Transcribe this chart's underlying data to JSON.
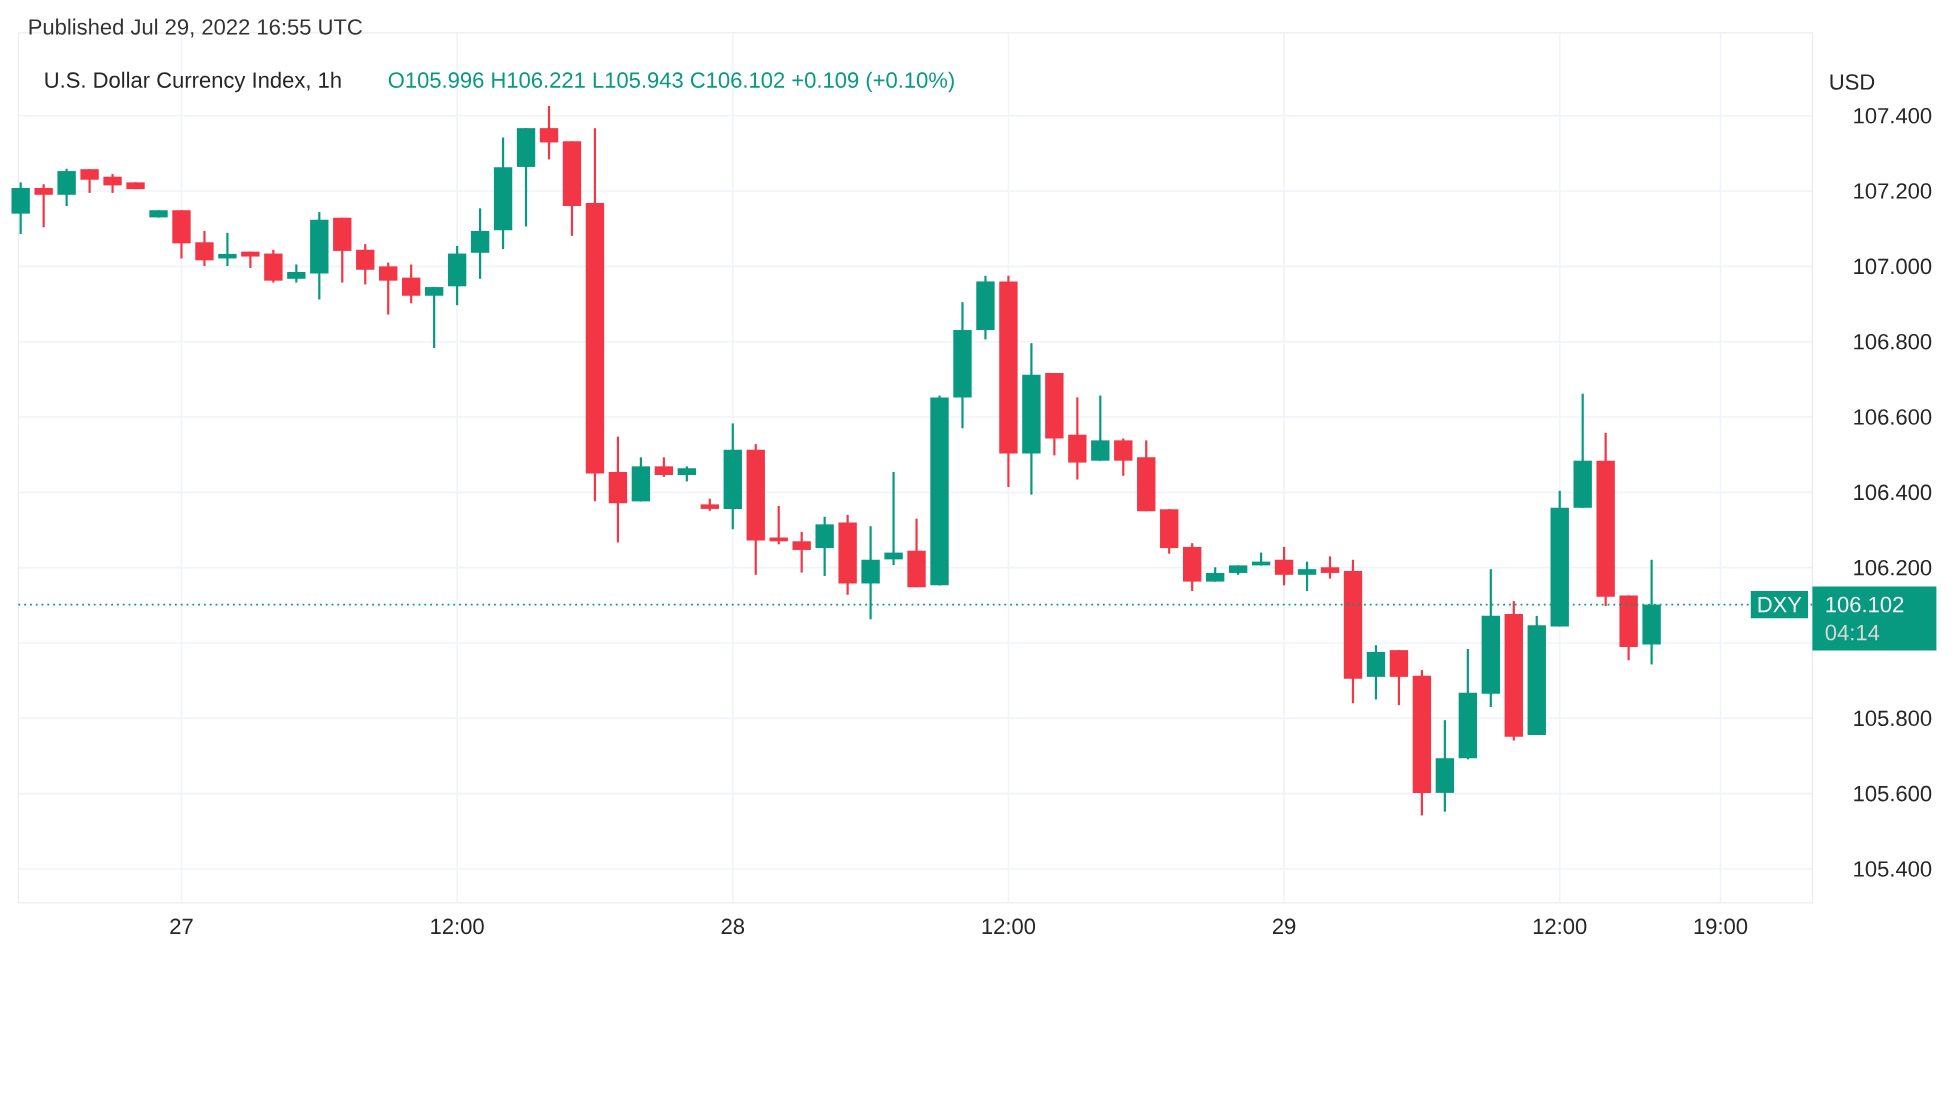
{
  "chart_data": {
    "type": "candlestick",
    "title": "U.S. Dollar Currency Index, 1h",
    "subtitle": "O105.996 H106.221 L105.943 C106.102 +0.109 (+0.10%)",
    "ylabel": "USD",
    "annotations": [
      "Published Jul 29, 2022 16:55 UTC",
      "106.102",
      "04:14"
    ],
    "x": [
      "2022-07-26T17:00",
      "2022-07-26T18:00",
      "2022-07-26T19:00",
      "2022-07-26T20:00",
      "2022-07-26T21:00",
      "2022-07-26T22:00",
      "2022-07-26T23:00",
      "2022-07-27T00:00",
      "2022-07-27T01:00",
      "2022-07-27T02:00",
      "2022-07-27T03:00",
      "2022-07-27T04:00",
      "2022-07-27T05:00",
      "2022-07-27T06:00",
      "2022-07-27T07:00",
      "2022-07-27T08:00",
      "2022-07-27T09:00",
      "2022-07-27T10:00",
      "2022-07-27T11:00",
      "2022-07-27T12:00",
      "2022-07-27T13:00",
      "2022-07-27T14:00",
      "2022-07-27T15:00",
      "2022-07-27T16:00",
      "2022-07-27T17:00",
      "2022-07-27T18:00",
      "2022-07-27T19:00",
      "2022-07-27T20:00",
      "2022-07-27T21:00",
      "2022-07-27T22:00",
      "2022-07-27T23:00",
      "2022-07-28T00:00",
      "2022-07-28T01:00",
      "2022-07-28T02:00",
      "2022-07-28T03:00",
      "2022-07-28T04:00",
      "2022-07-28T05:00",
      "2022-07-28T06:00",
      "2022-07-28T07:00",
      "2022-07-28T08:00",
      "2022-07-28T09:00",
      "2022-07-28T10:00",
      "2022-07-28T11:00",
      "2022-07-28T12:00",
      "2022-07-28T13:00",
      "2022-07-28T14:00",
      "2022-07-28T15:00",
      "2022-07-28T16:00",
      "2022-07-28T17:00",
      "2022-07-28T18:00",
      "2022-07-28T19:00",
      "2022-07-28T20:00",
      "2022-07-28T21:00",
      "2022-07-28T22:00",
      "2022-07-28T23:00",
      "2022-07-29T00:00",
      "2022-07-29T01:00",
      "2022-07-29T02:00",
      "2022-07-29T03:00",
      "2022-07-29T04:00",
      "2022-07-29T05:00",
      "2022-07-29T06:00",
      "2022-07-29T07:00",
      "2022-07-29T08:00",
      "2022-07-29T09:00",
      "2022-07-29T10:00",
      "2022-07-29T11:00",
      "2022-07-29T12:00",
      "2022-07-29T13:00",
      "2022-07-29T14:00",
      "2022-07-29T15:00",
      "2022-07-29T16:00"
    ],
    "ohlc": [
      [
        107.14,
        107.223,
        107.086,
        107.208
      ],
      [
        107.208,
        107.218,
        107.104,
        107.19
      ],
      [
        107.19,
        107.259,
        107.16,
        107.253
      ],
      [
        107.258,
        107.258,
        107.195,
        107.23
      ],
      [
        107.238,
        107.245,
        107.195,
        107.215
      ],
      [
        107.223,
        107.223,
        107.205,
        107.205
      ],
      [
        107.13,
        107.149,
        107.13,
        107.149
      ],
      [
        107.149,
        107.149,
        107.021,
        107.061
      ],
      [
        107.064,
        107.094,
        107.001,
        107.016
      ],
      [
        107.021,
        107.089,
        107.001,
        107.033
      ],
      [
        107.039,
        107.039,
        106.996,
        107.026
      ],
      [
        107.034,
        107.044,
        106.957,
        106.962
      ],
      [
        106.967,
        107.005,
        106.957,
        106.985
      ],
      [
        106.981,
        107.144,
        106.912,
        107.124
      ],
      [
        107.129,
        107.129,
        106.957,
        107.041
      ],
      [
        107.044,
        107.059,
        106.952,
        106.991
      ],
      [
        107.0,
        107.01,
        106.872,
        106.962
      ],
      [
        106.97,
        107.005,
        106.902,
        106.922
      ],
      [
        106.922,
        106.945,
        106.783,
        106.945
      ],
      [
        106.947,
        107.054,
        106.897,
        107.034
      ],
      [
        107.036,
        107.154,
        106.967,
        107.094
      ],
      [
        107.096,
        107.342,
        107.046,
        107.263
      ],
      [
        107.264,
        107.367,
        107.106,
        107.367
      ],
      [
        107.367,
        107.426,
        107.284,
        107.329
      ],
      [
        107.332,
        107.332,
        107.081,
        107.16
      ],
      [
        107.168,
        107.367,
        106.376,
        106.45
      ],
      [
        106.454,
        106.548,
        106.267,
        106.371
      ],
      [
        106.376,
        106.493,
        106.376,
        106.469
      ],
      [
        106.469,
        106.493,
        106.441,
        106.446
      ],
      [
        106.446,
        106.469,
        106.429,
        106.464
      ],
      [
        106.368,
        106.383,
        106.351,
        106.356
      ],
      [
        106.356,
        106.583,
        106.302,
        106.513
      ],
      [
        106.513,
        106.528,
        106.181,
        106.272
      ],
      [
        106.28,
        106.364,
        106.262,
        106.27
      ],
      [
        106.27,
        106.295,
        106.187,
        106.247
      ],
      [
        106.252,
        106.335,
        106.178,
        106.315
      ],
      [
        106.32,
        106.34,
        106.128,
        106.158
      ],
      [
        106.158,
        106.31,
        106.063,
        106.221
      ],
      [
        106.222,
        106.454,
        106.207,
        106.24
      ],
      [
        106.245,
        106.33,
        106.148,
        106.148
      ],
      [
        106.153,
        106.657,
        106.153,
        106.652
      ],
      [
        106.652,
        106.905,
        106.57,
        106.831
      ],
      [
        106.831,
        106.975,
        106.806,
        106.96
      ],
      [
        106.96,
        106.975,
        106.414,
        106.503
      ],
      [
        106.503,
        106.796,
        106.394,
        106.712
      ],
      [
        106.717,
        106.717,
        106.498,
        106.543
      ],
      [
        106.553,
        106.652,
        106.434,
        106.479
      ],
      [
        106.484,
        106.657,
        106.484,
        106.538
      ],
      [
        106.538,
        106.543,
        106.444,
        106.484
      ],
      [
        106.493,
        106.538,
        106.35,
        106.35
      ],
      [
        106.355,
        106.355,
        106.237,
        106.252
      ],
      [
        106.255,
        106.265,
        106.138,
        106.163
      ],
      [
        106.163,
        106.201,
        106.163,
        106.186
      ],
      [
        106.186,
        106.206,
        106.181,
        106.206
      ],
      [
        106.206,
        106.24,
        106.206,
        106.216
      ],
      [
        106.221,
        106.255,
        106.153,
        106.181
      ],
      [
        106.181,
        106.216,
        106.138,
        106.196
      ],
      [
        106.201,
        106.23,
        106.171,
        106.186
      ],
      [
        106.191,
        106.221,
        105.84,
        105.905
      ],
      [
        105.91,
        105.994,
        105.85,
        105.976
      ],
      [
        105.981,
        105.981,
        105.835,
        105.91
      ],
      [
        105.913,
        105.928,
        105.542,
        105.602
      ],
      [
        105.602,
        105.795,
        105.552,
        105.694
      ],
      [
        105.694,
        105.984,
        105.691,
        105.868
      ],
      [
        105.865,
        106.196,
        105.83,
        106.072
      ],
      [
        106.077,
        106.111,
        105.741,
        105.751
      ],
      [
        105.756,
        106.072,
        105.756,
        106.047
      ],
      [
        106.044,
        106.404,
        106.044,
        106.359
      ],
      [
        106.359,
        106.662,
        106.359,
        106.484
      ],
      [
        106.484,
        106.558,
        106.098,
        106.123
      ],
      [
        106.126,
        106.126,
        105.954,
        105.989
      ],
      [
        105.996,
        106.221,
        105.943,
        106.102
      ]
    ],
    "colors": [
      "#089981",
      "#f23645",
      "#089981",
      "#f23645",
      "#f23645",
      "#f23645",
      "#089981",
      "#f23645",
      "#f23645",
      "#089981",
      "#f23645",
      "#f23645",
      "#089981",
      "#089981",
      "#f23645",
      "#f23645",
      "#f23645",
      "#f23645",
      "#089981",
      "#089981",
      "#089981",
      "#089981",
      "#089981",
      "#f23645",
      "#f23645",
      "#f23645",
      "#f23645",
      "#089981",
      "#f23645",
      "#089981",
      "#f23645",
      "#089981",
      "#f23645",
      "#f23645",
      "#f23645",
      "#089981",
      "#f23645",
      "#089981",
      "#089981",
      "#f23645",
      "#089981",
      "#089981",
      "#089981",
      "#f23645",
      "#089981",
      "#f23645",
      "#f23645",
      "#089981",
      "#f23645",
      "#f23645",
      "#f23645",
      "#f23645",
      "#089981",
      "#089981",
      "#089981",
      "#f23645",
      "#089981",
      "#f23645",
      "#f23645",
      "#089981",
      "#f23645",
      "#f23645",
      "#089981",
      "#089981",
      "#089981",
      "#f23645",
      "#089981",
      "#089981",
      "#089981",
      "#f23645",
      "#f23645",
      "#089981"
    ],
    "xlim": [
      "2022-07-26T16:54",
      "2022-07-29T23:00"
    ],
    "xticks": [
      {
        "value": "2022-07-27T00:00",
        "label": "27"
      },
      {
        "value": "2022-07-27T12:00",
        "label": "12:00"
      },
      {
        "value": "2022-07-28T00:00",
        "label": "28"
      },
      {
        "value": "2022-07-28T12:00",
        "label": "12:00"
      },
      {
        "value": "2022-07-29T00:00",
        "label": "29"
      },
      {
        "value": "2022-07-29T12:00",
        "label": "12:00"
      },
      {
        "value": "2022-07-29T19:00",
        "label": "19:00"
      }
    ],
    "ylim": [
      105.31,
      107.62
    ],
    "yticks": [
      {
        "value": 105.4,
        "label": "105.400"
      },
      {
        "value": 105.6,
        "label": "105.600"
      },
      {
        "value": 105.8,
        "label": "105.800"
      },
      {
        "value": 106.0,
        "label": null
      },
      {
        "value": 106.2,
        "label": "106.200"
      },
      {
        "value": 106.4,
        "label": "106.400"
      },
      {
        "value": 106.6,
        "label": "106.600"
      },
      {
        "value": 106.8,
        "label": "106.800"
      },
      {
        "value": 107.0,
        "label": "107.000"
      },
      {
        "value": 107.2,
        "label": "107.200"
      },
      {
        "value": 107.4,
        "label": "107.400"
      }
    ],
    "ref_lines": [
      {
        "axis": "y",
        "value": 106.102,
        "label": "DXY",
        "color": "#089981",
        "line_style": "dotted"
      }
    ],
    "grid": true
  }
}
